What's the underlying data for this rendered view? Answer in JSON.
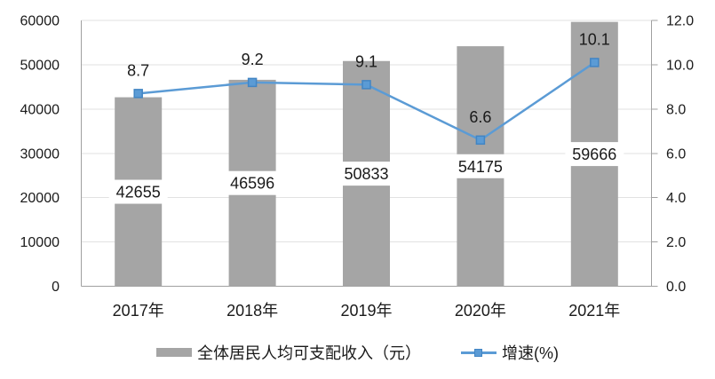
{
  "chart_data": {
    "type": "bar",
    "subtype": "bar-line-combo",
    "categories": [
      "2017年",
      "2018年",
      "2019年",
      "2020年",
      "2021年"
    ],
    "series": [
      {
        "name": "全体居民人均可支配收入（元）",
        "type": "bar",
        "axis": "left",
        "values": [
          42655,
          46596,
          50833,
          54175,
          59666
        ],
        "data_labels": [
          "42655",
          "46596",
          "50833",
          "54175",
          "59666"
        ]
      },
      {
        "name": "增速(%)",
        "type": "line",
        "axis": "right",
        "values": [
          8.7,
          9.2,
          9.1,
          6.6,
          10.1
        ],
        "data_labels": [
          "8.7",
          "9.2",
          "9.1",
          "6.6",
          "10.1"
        ]
      }
    ],
    "left_axis": {
      "min": 0,
      "max": 60000,
      "step": 10000,
      "tick_labels": [
        "0",
        "10000",
        "20000",
        "30000",
        "40000",
        "50000",
        "60000"
      ]
    },
    "right_axis": {
      "min": 0,
      "max": 12,
      "step": 2,
      "tick_labels": [
        "0.0",
        "2.0",
        "4.0",
        "6.0",
        "8.0",
        "10.0",
        "12.0"
      ]
    },
    "grid": true,
    "legend_position": "bottom"
  },
  "style": {
    "bar_color": "#A5A5A5",
    "line_color": "#5B9BD5",
    "marker_fill": "#5B9BD5",
    "marker_stroke": "#4285C4",
    "grid_color": "#E2E2E2",
    "axis_color": "#A0A0A0",
    "text_color": "#1A1A1A",
    "label_box_color": "#FFFFFF",
    "background": "#FFFFFF"
  }
}
